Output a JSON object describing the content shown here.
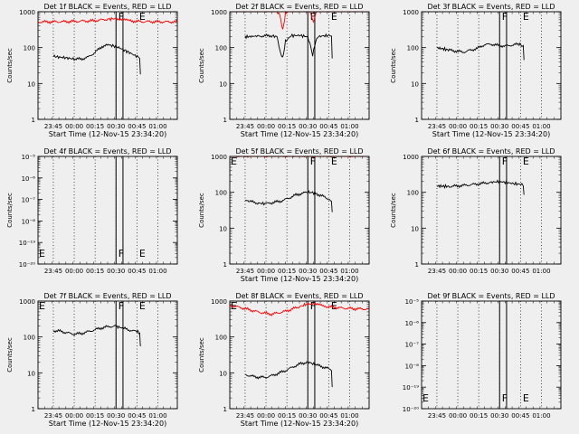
{
  "figure": {
    "background": "#efefef",
    "axis_color": "#000000"
  },
  "chart_data": [
    {
      "type": "line",
      "title": "Det 1f BLACK = Events, RED = LLD",
      "xlabel": "Start Time (12-Nov-15 23:34:20)",
      "ylabel": "Counts/sec",
      "yscale": "log",
      "ylim": [
        1,
        1000
      ],
      "yticks": [
        "1",
        "10",
        "100",
        "1000"
      ],
      "xticks": [
        "23:45",
        "00:00",
        "00:15",
        "00:30",
        "00:45",
        "01:00"
      ],
      "xlim_min": [
        0,
        100
      ],
      "dotted_lines_min": [
        11,
        26,
        41,
        56,
        71,
        86
      ],
      "solid_lines_min": [
        56,
        61
      ],
      "markers": [
        {
          "text": "F",
          "x_min": 57,
          "y": 1000
        },
        {
          "text": "E",
          "x_min": 72,
          "y": 1000
        }
      ],
      "series": [
        {
          "color": "#ff0000",
          "x": [
            0,
            20,
            40,
            50,
            57,
            65,
            75,
            100
          ],
          "y": [
            520,
            530,
            560,
            620,
            650,
            560,
            530,
            520
          ]
        },
        {
          "color": "#000000",
          "x": [
            11,
            14,
            20,
            26,
            31,
            36,
            41,
            46,
            51,
            55,
            58,
            61,
            65,
            69,
            72,
            73,
            73.5
          ],
          "y": [
            58,
            55,
            52,
            48,
            48,
            54,
            74,
            108,
            118,
            110,
            100,
            88,
            75,
            62,
            55,
            50,
            18
          ]
        }
      ]
    },
    {
      "type": "line",
      "title": "Det 2f BLACK = Events, RED = LLD",
      "xlabel": "Start Time (12-Nov-15 23:34:20)",
      "ylabel": "Counts/sec",
      "yscale": "log",
      "ylim": [
        1,
        1000
      ],
      "yticks": [
        "1",
        "10",
        "100",
        "1000"
      ],
      "xticks": [
        "23:45",
        "00:00",
        "00:15",
        "00:30",
        "00:45",
        "01:00"
      ],
      "xlim_min": [
        0,
        100
      ],
      "dotted_lines_min": [
        11,
        26,
        41,
        56,
        71,
        86
      ],
      "solid_lines_min": [
        56,
        61
      ],
      "markers": [
        {
          "text": "F",
          "x_min": 57,
          "y": 1000
        },
        {
          "text": "E",
          "x_min": 72,
          "y": 1000
        }
      ],
      "series": [
        {
          "color": "#ff0000",
          "x": [
            0,
            20,
            33,
            36,
            38,
            40,
            43,
            50,
            57,
            59,
            60,
            62,
            64,
            70,
            100
          ],
          "y": [
            1150,
            1150,
            1150,
            800,
            300,
            900,
            1150,
            1150,
            1150,
            700,
            500,
            1000,
            1150,
            1150,
            1150
          ]
        },
        {
          "color": "#000000",
          "x": [
            11,
            20,
            30,
            34,
            36,
            38,
            40,
            44,
            50,
            56,
            58,
            59.5,
            61,
            63,
            66,
            72,
            73,
            73.5
          ],
          "y": [
            200,
            210,
            215,
            200,
            80,
            50,
            150,
            215,
            220,
            200,
            110,
            60,
            120,
            200,
            210,
            220,
            210,
            50
          ]
        }
      ]
    },
    {
      "type": "line",
      "title": "Det 3f BLACK = Events, RED = LLD",
      "xlabel": "Start Time (12-Nov-15 23:34:20)",
      "ylabel": "Counts/sec",
      "yscale": "log",
      "ylim": [
        1,
        1000
      ],
      "yticks": [
        "1",
        "10",
        "100",
        "1000"
      ],
      "xticks": [
        "23:45",
        "00:00",
        "00:15",
        "00:30",
        "00:45",
        "01:00"
      ],
      "xlim_min": [
        0,
        100
      ],
      "dotted_lines_min": [
        11,
        26,
        41,
        56,
        71,
        86
      ],
      "solid_lines_min": [
        56,
        61
      ],
      "markers": [
        {
          "text": "F",
          "x_min": 57,
          "y": 1000
        },
        {
          "text": "E",
          "x_min": 72,
          "y": 1000
        }
      ],
      "series": [
        {
          "color": "#000000",
          "x": [
            11,
            20,
            30,
            40,
            45,
            50,
            55,
            60,
            65,
            70,
            72,
            73,
            73.5
          ],
          "y": [
            100,
            85,
            75,
            95,
            120,
            125,
            115,
            110,
            118,
            125,
            115,
            110,
            45
          ]
        }
      ]
    },
    {
      "type": "line",
      "title": "Det 4f BLACK = Events, RED = LLD",
      "xlabel": "",
      "ylabel": "Counts/sec",
      "yscale": "log",
      "ylim": [
        1e-20,
        1e-05
      ],
      "yticks": [
        "10⁻²⁰",
        "10⁻¹⁹",
        "10⁻⁸",
        "10⁻⁷",
        "10⁻⁶",
        "10⁻⁵"
      ],
      "xticks": [
        "23:45",
        "00:00",
        "00:15",
        "00:30",
        "00:45",
        "01:00"
      ],
      "xlim_min": [
        0,
        100
      ],
      "dotted_lines_min": [
        11,
        26,
        41,
        56,
        71,
        86
      ],
      "solid_lines_min": [
        56,
        61
      ],
      "markers": [
        {
          "text": "E",
          "x_min": 0,
          "y": 1e-19
        },
        {
          "text": "F",
          "x_min": 57,
          "y": 1e-19
        },
        {
          "text": "E",
          "x_min": 72,
          "y": 1e-19
        }
      ],
      "series": []
    },
    {
      "type": "line",
      "title": "Det 5f BLACK = Events, RED = LLD",
      "xlabel": "Start Time (12-Nov-15 23:34:20)",
      "ylabel": "Counts/sec",
      "yscale": "log",
      "ylim": [
        1,
        1000
      ],
      "yticks": [
        "1",
        "10",
        "100",
        "1000"
      ],
      "xticks": [
        "23:45",
        "00:00",
        "00:15",
        "00:30",
        "00:45",
        "01:00"
      ],
      "xlim_min": [
        0,
        100
      ],
      "dotted_lines_min": [
        11,
        26,
        41,
        56,
        71,
        86
      ],
      "solid_lines_min": [
        56,
        61
      ],
      "markers": [
        {
          "text": "E",
          "x_min": 0,
          "y": 1000
        },
        {
          "text": "F",
          "x_min": 57,
          "y": 1000
        },
        {
          "text": "E",
          "x_min": 72,
          "y": 1000
        }
      ],
      "series": [
        {
          "color": "#ff0000",
          "x": [
            0,
            100
          ],
          "y": [
            1050,
            1050
          ]
        },
        {
          "color": "#000000",
          "x": [
            11,
            15,
            20,
            26,
            31,
            36,
            41,
            46,
            51,
            56,
            58,
            61,
            66,
            71,
            73,
            73.5
          ],
          "y": [
            60,
            55,
            50,
            48,
            52,
            56,
            65,
            80,
            92,
            100,
            100,
            95,
            80,
            65,
            55,
            28
          ]
        }
      ]
    },
    {
      "type": "line",
      "title": "Det 6f BLACK = Events, RED = LLD",
      "xlabel": "",
      "ylabel": "Counts/sec",
      "yscale": "log",
      "ylim": [
        1,
        1000
      ],
      "yticks": [
        "1",
        "10",
        "100",
        "1000"
      ],
      "xticks": [
        "23:45",
        "00:00",
        "00:15",
        "00:30",
        "00:45",
        "01:00"
      ],
      "xlim_min": [
        0,
        100
      ],
      "dotted_lines_min": [
        11,
        26,
        41,
        56,
        71,
        86
      ],
      "solid_lines_min": [
        56,
        61
      ],
      "markers": [
        {
          "text": "F",
          "x_min": 57,
          "y": 1000
        },
        {
          "text": "E",
          "x_min": 72,
          "y": 1000
        }
      ],
      "series": [
        {
          "color": "#000000",
          "x": [
            11,
            20,
            30,
            40,
            50,
            56,
            60,
            66,
            72,
            73,
            73.5
          ],
          "y": [
            150,
            145,
            155,
            170,
            190,
            200,
            190,
            175,
            165,
            160,
            85
          ]
        }
      ]
    },
    {
      "type": "line",
      "title": "Det 7f BLACK = Events, RED = LLD",
      "xlabel": "Start Time (12-Nov-15 23:34:20)",
      "ylabel": "Counts/sec",
      "yscale": "log",
      "ylim": [
        1,
        1000
      ],
      "yticks": [
        "1",
        "10",
        "100",
        "1000"
      ],
      "xticks": [
        "23:45",
        "00:00",
        "00:15",
        "00:30",
        "00:45",
        "01:00"
      ],
      "xlim_min": [
        0,
        100
      ],
      "dotted_lines_min": [
        11,
        26,
        41,
        56,
        71,
        86
      ],
      "solid_lines_min": [
        56,
        61
      ],
      "markers": [
        {
          "text": "E",
          "x_min": 0,
          "y": 1000
        },
        {
          "text": "F",
          "x_min": 57,
          "y": 1000
        },
        {
          "text": "E",
          "x_min": 72,
          "y": 1000
        }
      ],
      "series": [
        {
          "color": "#000000",
          "x": [
            11,
            16,
            21,
            26,
            31,
            36,
            41,
            46,
            51,
            56,
            58,
            61,
            66,
            71,
            73,
            73.5
          ],
          "y": [
            150,
            145,
            130,
            120,
            125,
            140,
            160,
            180,
            195,
            200,
            190,
            175,
            155,
            140,
            130,
            55
          ]
        }
      ]
    },
    {
      "type": "line",
      "title": "Det 8f BLACK = Events, RED = LLD",
      "xlabel": "Start Time (12-Nov-15 23:34:20)",
      "ylabel": "Counts/sec",
      "yscale": "log",
      "ylim": [
        1,
        1000
      ],
      "yticks": [
        "1",
        "10",
        "100",
        "1000"
      ],
      "xticks": [
        "23:45",
        "00:00",
        "00:15",
        "00:30",
        "00:45",
        "01:00"
      ],
      "xlim_min": [
        0,
        100
      ],
      "dotted_lines_min": [
        11,
        26,
        41,
        56,
        71,
        86
      ],
      "solid_lines_min": [
        56,
        61
      ],
      "markers": [
        {
          "text": "E",
          "x_min": 0,
          "y": 1000
        },
        {
          "text": "F",
          "x_min": 57,
          "y": 1000
        },
        {
          "text": "E",
          "x_min": 72,
          "y": 1000
        }
      ],
      "series": [
        {
          "color": "#ff0000",
          "x": [
            0,
            10,
            20,
            30,
            40,
            50,
            57,
            62,
            70,
            80,
            90,
            100
          ],
          "y": [
            760,
            630,
            500,
            430,
            520,
            700,
            860,
            800,
            700,
            640,
            610,
            600
          ]
        },
        {
          "color": "#000000",
          "x": [
            11,
            16,
            21,
            26,
            31,
            36,
            41,
            46,
            51,
            56,
            58,
            61,
            66,
            71,
            73,
            73.5
          ],
          "y": [
            9,
            8,
            7.5,
            7.5,
            8.5,
            10,
            12,
            15,
            18,
            20,
            19,
            17,
            15,
            13,
            12,
            4
          ]
        }
      ]
    },
    {
      "type": "line",
      "title": "Det 9f BLACK = Events, RED = LLD",
      "xlabel": "",
      "ylabel": "",
      "yscale": "log",
      "ylim": [
        1e-20,
        1e-05
      ],
      "yticks": [
        "10⁻²⁰",
        "10⁻¹⁹",
        "10⁻⁸",
        "10⁻⁷",
        "10⁻⁶",
        "10⁻⁵"
      ],
      "xticks": [
        "23:45",
        "00:00",
        "00:15",
        "00:30",
        "00:45",
        "01:00"
      ],
      "xlim_min": [
        0,
        100
      ],
      "dotted_lines_min": [
        11,
        26,
        41,
        56,
        71,
        86
      ],
      "solid_lines_min": [
        56,
        61
      ],
      "markers": [
        {
          "text": "E",
          "x_min": 0,
          "y": 1e-19
        },
        {
          "text": "F",
          "x_min": 57,
          "y": 1e-19
        },
        {
          "text": "E",
          "x_min": 72,
          "y": 1e-19
        }
      ],
      "series": []
    }
  ]
}
